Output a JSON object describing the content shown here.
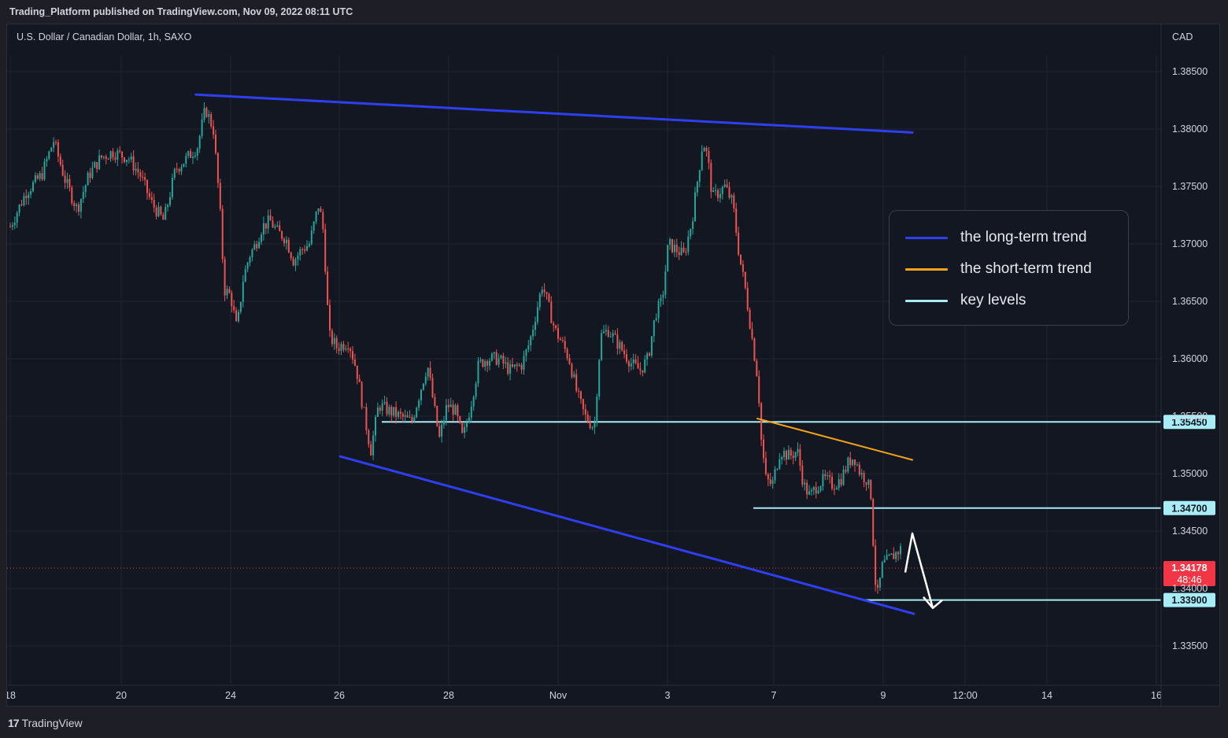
{
  "header": {
    "publish_text": "Trading_Platform published on TradingView.com, Nov 09, 2022 08:11 UTC"
  },
  "chart_info": {
    "symbol_line": "U.S. Dollar / Canadian Dollar, 1h, SAXO",
    "currency": "CAD"
  },
  "footer": {
    "brand_mark": "17",
    "brand": "TradingView"
  },
  "legend": {
    "items": [
      {
        "label": "the long-term trend",
        "color": "#2f3ff0"
      },
      {
        "label": "the short-term trend",
        "color": "#f7a21b"
      },
      {
        "label": "key levels",
        "color": "#a8ecf6"
      }
    ]
  },
  "colors": {
    "up_candle": "#26a69a",
    "down_candle": "#ef5350",
    "background": "#131722",
    "grid": "#1f2430",
    "price_tag": "#f23645"
  },
  "chart_data": {
    "type": "candlestick",
    "ylim": [
      1.332,
      1.388
    ],
    "y_ticks": [
      "1.38500",
      "1.38000",
      "1.37500",
      "1.37000",
      "1.36500",
      "1.36000",
      "1.35500",
      "1.35000",
      "1.34500",
      "1.34000",
      "1.33500"
    ],
    "x_ticks": [
      "18",
      "20",
      "24",
      "26",
      "28",
      "Nov",
      "3",
      "7",
      "9",
      "12:00",
      "14",
      "16"
    ],
    "key_levels": [
      {
        "label": "1.35450",
        "value": 1.3545
      },
      {
        "label": "1.34700",
        "value": 1.347
      },
      {
        "label": "1.33900",
        "value": 1.339
      }
    ],
    "current_price": {
      "label": "1.34178",
      "value": 1.34178,
      "countdown": "48:46"
    },
    "trend_lines": [
      {
        "name": "the long-term trend",
        "from": [
          "Oct 23",
          1.383
        ],
        "to": [
          "Nov 10",
          1.3797
        ]
      },
      {
        "name": "the long-term trend",
        "from": [
          "Oct 26",
          1.3515
        ],
        "to": [
          "Nov 10",
          1.3378
        ]
      },
      {
        "name": "the short-term trend",
        "from": [
          "Nov 6",
          1.3548
        ],
        "to": [
          "Nov 10",
          1.3512
        ]
      }
    ],
    "projection": {
      "description": "",
      "points": [
        [
          1.3414
        ],
        [
          1.3448
        ],
        [
          1.3383
        ]
      ]
    },
    "price_path": [
      [
        0,
        1.3715
      ],
      [
        20,
        1.3745
      ],
      [
        40,
        1.376
      ],
      [
        55,
        1.379
      ],
      [
        70,
        1.3755
      ],
      [
        85,
        1.373
      ],
      [
        100,
        1.376
      ],
      [
        115,
        1.3775
      ],
      [
        130,
        1.378
      ],
      [
        150,
        1.3775
      ],
      [
        165,
        1.376
      ],
      [
        180,
        1.3735
      ],
      [
        195,
        1.372
      ],
      [
        210,
        1.3765
      ],
      [
        225,
        1.3775
      ],
      [
        238,
        1.3785
      ],
      [
        248,
        1.3818
      ],
      [
        258,
        1.38
      ],
      [
        266,
        1.3735
      ],
      [
        272,
        1.366
      ],
      [
        280,
        1.3655
      ],
      [
        288,
        1.3625
      ],
      [
        296,
        1.367
      ],
      [
        304,
        1.369
      ],
      [
        312,
        1.37
      ],
      [
        320,
        1.3715
      ],
      [
        330,
        1.372
      ],
      [
        340,
        1.371
      ],
      [
        350,
        1.3705
      ],
      [
        360,
        1.3685
      ],
      [
        370,
        1.3695
      ],
      [
        380,
        1.37
      ],
      [
        392,
        1.3735
      ],
      [
        398,
        1.371
      ],
      [
        405,
        1.362
      ],
      [
        415,
        1.361
      ],
      [
        430,
        1.3615
      ],
      [
        440,
        1.359
      ],
      [
        450,
        1.355
      ],
      [
        458,
        1.352
      ],
      [
        468,
        1.356
      ],
      [
        480,
        1.3555
      ],
      [
        495,
        1.355
      ],
      [
        510,
        1.3545
      ],
      [
        520,
        1.357
      ],
      [
        530,
        1.3595
      ],
      [
        538,
        1.356
      ],
      [
        545,
        1.353
      ],
      [
        555,
        1.356
      ],
      [
        565,
        1.3555
      ],
      [
        575,
        1.353
      ],
      [
        585,
        1.356
      ],
      [
        595,
        1.3595
      ],
      [
        605,
        1.36
      ],
      [
        620,
        1.36
      ],
      [
        635,
        1.359
      ],
      [
        650,
        1.3595
      ],
      [
        660,
        1.3615
      ],
      [
        668,
        1.364
      ],
      [
        676,
        1.3665
      ],
      [
        684,
        1.3645
      ],
      [
        692,
        1.3625
      ],
      [
        700,
        1.3615
      ],
      [
        710,
        1.36
      ],
      [
        720,
        1.357
      ],
      [
        730,
        1.355
      ],
      [
        742,
        1.354
      ],
      [
        750,
        1.362
      ],
      [
        760,
        1.3625
      ],
      [
        770,
        1.3615
      ],
      [
        780,
        1.3605
      ],
      [
        790,
        1.3595
      ],
      [
        800,
        1.359
      ],
      [
        810,
        1.36
      ],
      [
        820,
        1.364
      ],
      [
        828,
        1.365
      ],
      [
        836,
        1.37
      ],
      [
        846,
        1.3695
      ],
      [
        856,
        1.369
      ],
      [
        866,
        1.372
      ],
      [
        874,
        1.376
      ],
      [
        880,
        1.379
      ],
      [
        886,
        1.3775
      ],
      [
        892,
        1.374
      ],
      [
        900,
        1.3745
      ],
      [
        908,
        1.375
      ],
      [
        918,
        1.3735
      ],
      [
        926,
        1.369
      ],
      [
        934,
        1.366
      ],
      [
        942,
        1.362
      ],
      [
        950,
        1.358
      ],
      [
        954,
        1.353
      ],
      [
        960,
        1.3495
      ],
      [
        968,
        1.349
      ],
      [
        978,
        1.352
      ],
      [
        990,
        1.3515
      ],
      [
        1000,
        1.352
      ],
      [
        1008,
        1.349
      ],
      [
        1016,
        1.348
      ],
      [
        1025,
        1.349
      ],
      [
        1035,
        1.3495
      ],
      [
        1045,
        1.349
      ],
      [
        1055,
        1.3495
      ],
      [
        1065,
        1.351
      ],
      [
        1072,
        1.3515
      ],
      [
        1080,
        1.35
      ],
      [
        1088,
        1.3495
      ],
      [
        1094,
        1.348
      ],
      [
        1098,
        1.341
      ],
      [
        1102,
        1.3395
      ],
      [
        1108,
        1.342
      ],
      [
        1116,
        1.3425
      ],
      [
        1124,
        1.343
      ],
      [
        1132,
        1.3435
      ],
      [
        1138,
        1.343
      ],
      [
        1144,
        1.3418
      ]
    ]
  }
}
